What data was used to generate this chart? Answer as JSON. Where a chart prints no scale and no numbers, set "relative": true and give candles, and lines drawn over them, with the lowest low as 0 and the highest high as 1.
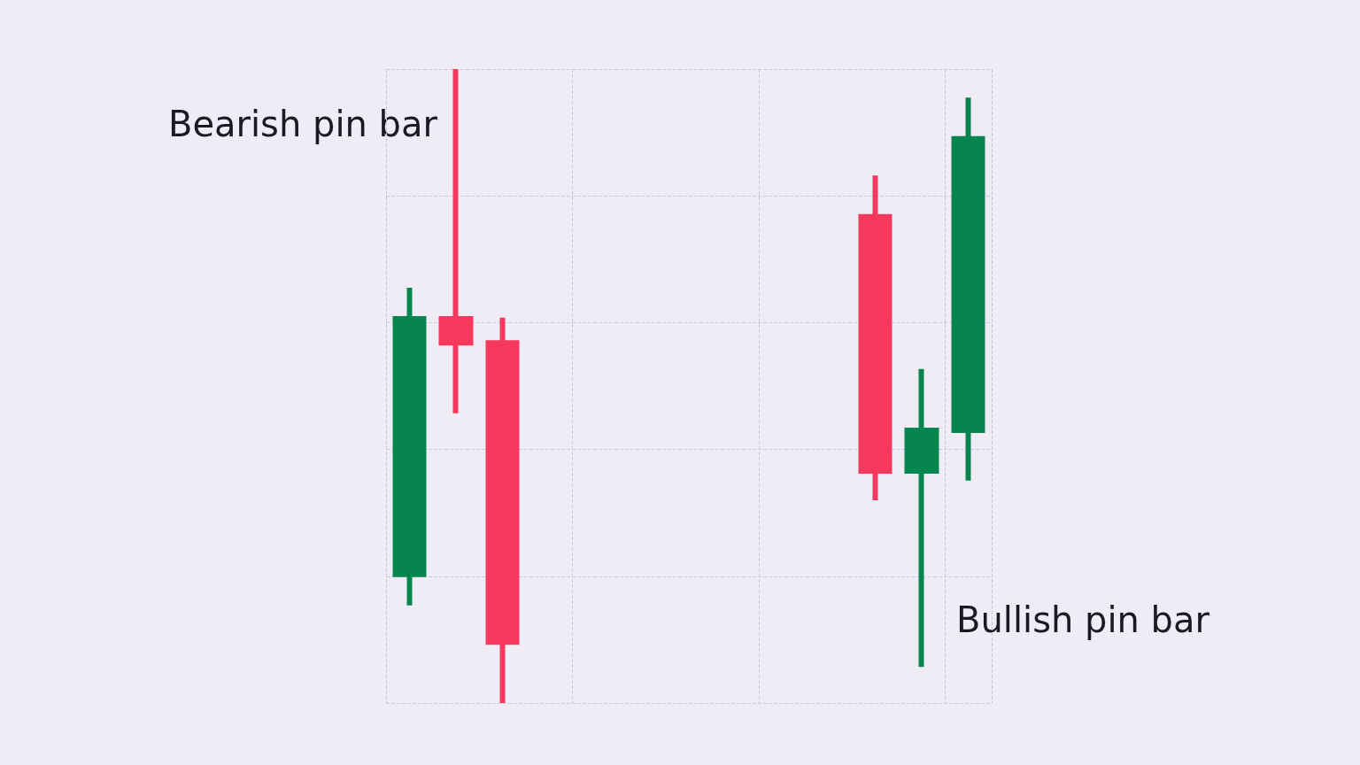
{
  "chart_data": {
    "type": "candlestick",
    "relative": true,
    "grid": true,
    "categories": [
      null,
      null,
      null,
      null,
      null,
      null,
      null,
      null,
      null,
      null,
      null,
      null,
      null
    ],
    "ohlc": [
      [
        0.203,
        0.655,
        0.154,
        0.606
      ],
      [
        0.606,
        1,
        0.457,
        0.568
      ],
      [
        0.568,
        0.608,
        0,
        0.096
      ],
      null,
      null,
      null,
      null,
      null,
      null,
      null,
      [
        0.767,
        0.832,
        0.32,
        0.366
      ],
      [
        0.366,
        0.527,
        0.057,
        0.43
      ],
      [
        0.43,
        0.955,
        0.351,
        0.89
      ]
    ],
    "colors": [
      "#07854f",
      "#f5385e",
      "#f5385e",
      null,
      null,
      null,
      null,
      null,
      null,
      null,
      "#f5385e",
      "#07854f",
      "#07854f"
    ],
    "annotations": [
      "Bearish pin bar",
      "Bullish pin bar"
    ]
  }
}
